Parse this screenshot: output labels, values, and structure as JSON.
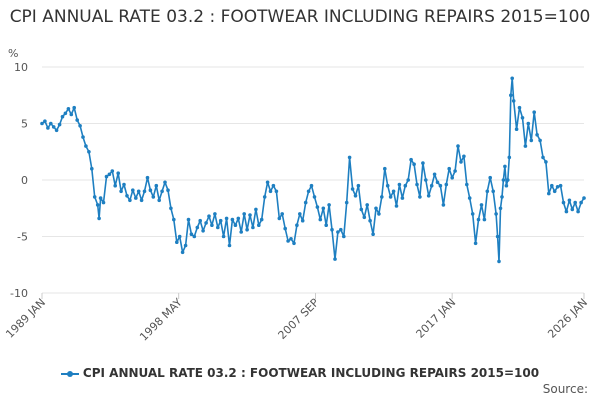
{
  "chart_data": {
    "type": "line",
    "title": "CPI ANNUAL RATE 03.2 : FOOTWEAR INCLUDING REPAIRS 2015=100",
    "ylabel": "%",
    "ylim": [
      -10,
      10
    ],
    "yticks": [
      10,
      5,
      0,
      -5,
      -10
    ],
    "xlim": [
      1989.0,
      2026.0
    ],
    "xticks": [
      {
        "label": "1989 JAN",
        "value": 1989.0
      },
      {
        "label": "1998 MAY",
        "value": 1998.33
      },
      {
        "label": "2007 SEP",
        "value": 2007.67
      },
      {
        "label": "2017 JAN",
        "value": 2017.0
      },
      {
        "label": "2026 JAN",
        "value": 2026.0
      }
    ],
    "grid": true,
    "legend_position": "bottom",
    "series": [
      {
        "name": "CPI ANNUAL RATE 03.2 : FOOTWEAR INCLUDING REPAIRS 2015=100",
        "color": "#1e7fc1",
        "points": [
          [
            1989.0,
            5.0
          ],
          [
            1989.2,
            5.2
          ],
          [
            1989.4,
            4.6
          ],
          [
            1989.6,
            5.0
          ],
          [
            1989.8,
            4.7
          ],
          [
            1990.0,
            4.4
          ],
          [
            1990.2,
            4.9
          ],
          [
            1990.4,
            5.6
          ],
          [
            1990.6,
            5.9
          ],
          [
            1990.8,
            6.3
          ],
          [
            1991.0,
            5.8
          ],
          [
            1991.2,
            6.4
          ],
          [
            1991.4,
            5.3
          ],
          [
            1991.6,
            4.8
          ],
          [
            1991.8,
            3.8
          ],
          [
            1992.0,
            3.0
          ],
          [
            1992.2,
            2.5
          ],
          [
            1992.4,
            1.0
          ],
          [
            1992.6,
            -1.5
          ],
          [
            1992.8,
            -2.2
          ],
          [
            1992.9,
            -3.4
          ],
          [
            1993.0,
            -1.6
          ],
          [
            1993.2,
            -2.0
          ],
          [
            1993.4,
            0.3
          ],
          [
            1993.6,
            0.5
          ],
          [
            1993.8,
            0.8
          ],
          [
            1994.0,
            -0.5
          ],
          [
            1994.2,
            0.6
          ],
          [
            1994.4,
            -1.0
          ],
          [
            1994.6,
            -0.4
          ],
          [
            1994.8,
            -1.4
          ],
          [
            1995.0,
            -1.8
          ],
          [
            1995.2,
            -0.9
          ],
          [
            1995.4,
            -1.6
          ],
          [
            1995.6,
            -1.0
          ],
          [
            1995.8,
            -1.8
          ],
          [
            1996.0,
            -1.0
          ],
          [
            1996.2,
            0.2
          ],
          [
            1996.4,
            -0.9
          ],
          [
            1996.6,
            -1.5
          ],
          [
            1996.8,
            -0.5
          ],
          [
            1997.0,
            -1.8
          ],
          [
            1997.2,
            -1.0
          ],
          [
            1997.4,
            -0.2
          ],
          [
            1997.6,
            -0.9
          ],
          [
            1997.8,
            -2.5
          ],
          [
            1998.0,
            -3.5
          ],
          [
            1998.2,
            -5.5
          ],
          [
            1998.4,
            -5.0
          ],
          [
            1998.6,
            -6.4
          ],
          [
            1998.8,
            -5.8
          ],
          [
            1999.0,
            -3.5
          ],
          [
            1999.2,
            -4.8
          ],
          [
            1999.4,
            -5.0
          ],
          [
            1999.6,
            -4.2
          ],
          [
            1999.8,
            -3.6
          ],
          [
            2000.0,
            -4.5
          ],
          [
            2000.2,
            -3.8
          ],
          [
            2000.4,
            -3.2
          ],
          [
            2000.6,
            -4.0
          ],
          [
            2000.8,
            -3.0
          ],
          [
            2001.0,
            -4.2
          ],
          [
            2001.2,
            -3.6
          ],
          [
            2001.4,
            -5.0
          ],
          [
            2001.6,
            -3.4
          ],
          [
            2001.8,
            -5.8
          ],
          [
            2002.0,
            -3.5
          ],
          [
            2002.2,
            -4.0
          ],
          [
            2002.4,
            -3.4
          ],
          [
            2002.6,
            -4.6
          ],
          [
            2002.8,
            -3.0
          ],
          [
            2003.0,
            -4.4
          ],
          [
            2003.2,
            -3.1
          ],
          [
            2003.4,
            -4.2
          ],
          [
            2003.6,
            -2.6
          ],
          [
            2003.8,
            -4.0
          ],
          [
            2004.0,
            -3.5
          ],
          [
            2004.2,
            -1.5
          ],
          [
            2004.4,
            -0.2
          ],
          [
            2004.6,
            -1.0
          ],
          [
            2004.8,
            -0.5
          ],
          [
            2005.0,
            -1.0
          ],
          [
            2005.2,
            -3.4
          ],
          [
            2005.4,
            -3.0
          ],
          [
            2005.6,
            -4.3
          ],
          [
            2005.8,
            -5.4
          ],
          [
            2006.0,
            -5.2
          ],
          [
            2006.2,
            -5.6
          ],
          [
            2006.4,
            -4.0
          ],
          [
            2006.6,
            -3.0
          ],
          [
            2006.8,
            -3.6
          ],
          [
            2007.0,
            -2.0
          ],
          [
            2007.2,
            -1.0
          ],
          [
            2007.4,
            -0.5
          ],
          [
            2007.6,
            -1.5
          ],
          [
            2007.8,
            -2.4
          ],
          [
            2008.0,
            -3.5
          ],
          [
            2008.2,
            -2.5
          ],
          [
            2008.4,
            -4.0
          ],
          [
            2008.6,
            -2.2
          ],
          [
            2008.8,
            -4.4
          ],
          [
            2009.0,
            -7.0
          ],
          [
            2009.2,
            -4.6
          ],
          [
            2009.4,
            -4.4
          ],
          [
            2009.6,
            -5.0
          ],
          [
            2009.8,
            -2.0
          ],
          [
            2010.0,
            2.0
          ],
          [
            2010.2,
            -0.8
          ],
          [
            2010.4,
            -1.4
          ],
          [
            2010.6,
            -0.5
          ],
          [
            2010.8,
            -2.6
          ],
          [
            2011.0,
            -3.3
          ],
          [
            2011.2,
            -2.2
          ],
          [
            2011.4,
            -3.6
          ],
          [
            2011.6,
            -4.8
          ],
          [
            2011.8,
            -2.5
          ],
          [
            2012.0,
            -3.0
          ],
          [
            2012.2,
            -1.5
          ],
          [
            2012.4,
            1.0
          ],
          [
            2012.6,
            -0.5
          ],
          [
            2012.8,
            -1.5
          ],
          [
            2013.0,
            -1.0
          ],
          [
            2013.2,
            -2.3
          ],
          [
            2013.4,
            -0.4
          ],
          [
            2013.6,
            -1.6
          ],
          [
            2013.8,
            -0.5
          ],
          [
            2014.0,
            0.0
          ],
          [
            2014.2,
            1.8
          ],
          [
            2014.4,
            1.4
          ],
          [
            2014.6,
            -0.4
          ],
          [
            2014.8,
            -1.5
          ],
          [
            2015.0,
            1.5
          ],
          [
            2015.2,
            0.0
          ],
          [
            2015.4,
            -1.4
          ],
          [
            2015.6,
            -0.5
          ],
          [
            2015.8,
            0.5
          ],
          [
            2016.0,
            -0.2
          ],
          [
            2016.2,
            -0.5
          ],
          [
            2016.4,
            -2.2
          ],
          [
            2016.6,
            -0.4
          ],
          [
            2016.8,
            1.0
          ],
          [
            2017.0,
            0.2
          ],
          [
            2017.2,
            0.8
          ],
          [
            2017.4,
            3.0
          ],
          [
            2017.6,
            1.6
          ],
          [
            2017.8,
            2.1
          ],
          [
            2018.0,
            -0.4
          ],
          [
            2018.2,
            -1.6
          ],
          [
            2018.4,
            -3.0
          ],
          [
            2018.6,
            -5.6
          ],
          [
            2018.8,
            -3.5
          ],
          [
            2019.0,
            -2.2
          ],
          [
            2019.2,
            -3.5
          ],
          [
            2019.4,
            -1.0
          ],
          [
            2019.6,
            0.2
          ],
          [
            2019.8,
            -1.0
          ],
          [
            2020.0,
            -3.0
          ],
          [
            2020.1,
            -5.0
          ],
          [
            2020.2,
            -7.2
          ],
          [
            2020.3,
            -2.5
          ],
          [
            2020.4,
            -1.5
          ],
          [
            2020.5,
            0.0
          ],
          [
            2020.6,
            1.2
          ],
          [
            2020.7,
            -0.5
          ],
          [
            2020.8,
            0.0
          ],
          [
            2020.9,
            2.0
          ],
          [
            2021.0,
            7.5
          ],
          [
            2021.1,
            9.0
          ],
          [
            2021.2,
            7.0
          ],
          [
            2021.4,
            4.5
          ],
          [
            2021.6,
            6.4
          ],
          [
            2021.8,
            5.5
          ],
          [
            2022.0,
            3.0
          ],
          [
            2022.2,
            5.0
          ],
          [
            2022.4,
            3.5
          ],
          [
            2022.6,
            6.0
          ],
          [
            2022.8,
            4.0
          ],
          [
            2023.0,
            3.5
          ],
          [
            2023.2,
            2.0
          ],
          [
            2023.4,
            1.6
          ],
          [
            2023.6,
            -1.2
          ],
          [
            2023.8,
            -0.5
          ],
          [
            2024.0,
            -1.0
          ],
          [
            2024.2,
            -0.6
          ],
          [
            2024.4,
            -0.5
          ],
          [
            2024.6,
            -2.0
          ],
          [
            2024.8,
            -2.8
          ],
          [
            2025.0,
            -1.8
          ],
          [
            2025.2,
            -2.6
          ],
          [
            2025.4,
            -2.0
          ],
          [
            2025.6,
            -2.8
          ],
          [
            2025.8,
            -2.0
          ],
          [
            2026.0,
            -1.6
          ]
        ]
      }
    ]
  },
  "legend": {
    "label": "CPI ANNUAL RATE 03.2 : FOOTWEAR INCLUDING REPAIRS 2015=100"
  },
  "footer": {
    "source_label": "Source:"
  }
}
